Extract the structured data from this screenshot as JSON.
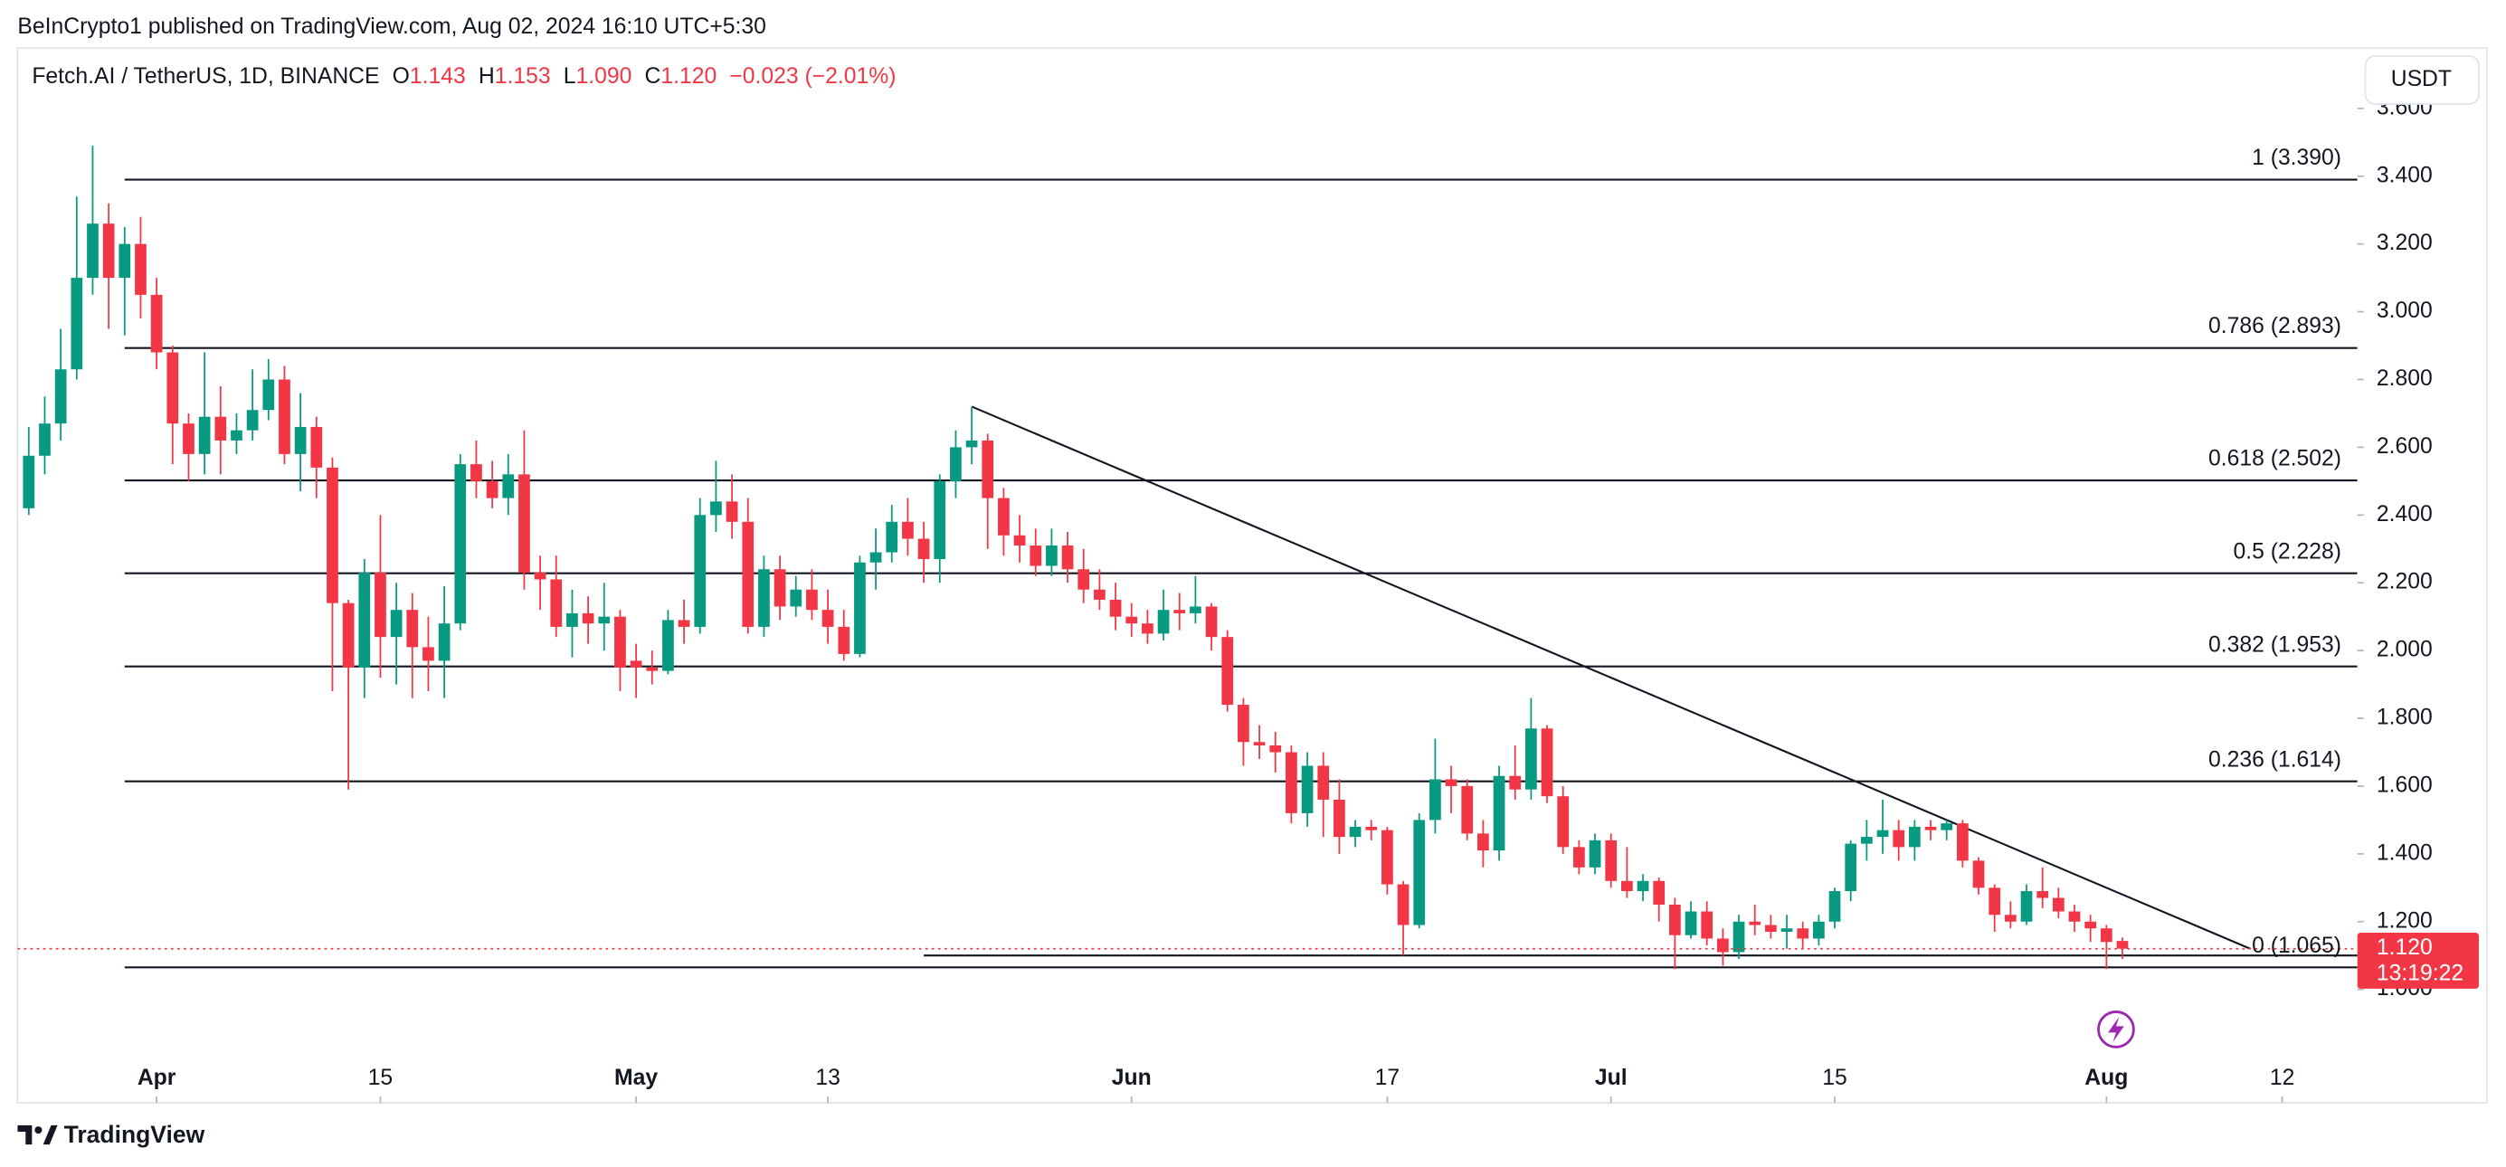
{
  "header": "BeInCrypto1 published on TradingView.com, Aug 02, 2024 16:10 UTC+5:30",
  "brand": "TradingView",
  "chart_data": {
    "type": "candlestick",
    "title": "Fetch.AI / TetherUS, 1D, BINANCE",
    "ohlc_legend": [
      {
        "key": "O",
        "value": "1.143"
      },
      {
        "key": "H",
        "value": "1.153"
      },
      {
        "key": "L",
        "value": "1.090"
      },
      {
        "key": "C",
        "value": "1.120"
      }
    ],
    "change": "−0.023 (−2.01%)",
    "currency": "USDT",
    "up_color": "#089981",
    "down_color": "#f23645",
    "x": [
      "2024-03-24",
      "2024-03-25",
      "2024-03-26",
      "2024-03-27",
      "2024-03-28",
      "2024-03-29",
      "2024-03-30",
      "2024-03-31",
      "2024-04-01",
      "2024-04-02",
      "2024-04-03",
      "2024-04-04",
      "2024-04-05",
      "2024-04-06",
      "2024-04-07",
      "2024-04-08",
      "2024-04-09",
      "2024-04-10",
      "2024-04-11",
      "2024-04-12",
      "2024-04-13",
      "2024-04-14",
      "2024-04-15",
      "2024-04-16",
      "2024-04-17",
      "2024-04-18",
      "2024-04-19",
      "2024-04-20",
      "2024-04-21",
      "2024-04-22",
      "2024-04-23",
      "2024-04-24",
      "2024-04-25",
      "2024-04-26",
      "2024-04-27",
      "2024-04-28",
      "2024-04-29",
      "2024-04-30",
      "2024-05-01",
      "2024-05-02",
      "2024-05-03",
      "2024-05-04",
      "2024-05-05",
      "2024-05-06",
      "2024-05-07",
      "2024-05-08",
      "2024-05-09",
      "2024-05-10",
      "2024-05-11",
      "2024-05-12",
      "2024-05-13",
      "2024-05-14",
      "2024-05-15",
      "2024-05-16",
      "2024-05-17",
      "2024-05-18",
      "2024-05-19",
      "2024-05-20",
      "2024-05-21",
      "2024-05-22",
      "2024-05-23",
      "2024-05-24",
      "2024-05-25",
      "2024-05-26",
      "2024-05-27",
      "2024-05-28",
      "2024-05-29",
      "2024-05-30",
      "2024-05-31",
      "2024-06-01",
      "2024-06-02",
      "2024-06-03",
      "2024-06-04",
      "2024-06-05",
      "2024-06-06",
      "2024-06-07",
      "2024-06-08",
      "2024-06-09",
      "2024-06-10",
      "2024-06-11",
      "2024-06-12",
      "2024-06-13",
      "2024-06-14",
      "2024-06-15",
      "2024-06-16",
      "2024-06-17",
      "2024-06-18",
      "2024-06-19",
      "2024-06-20",
      "2024-06-21",
      "2024-06-22",
      "2024-06-23",
      "2024-06-24",
      "2024-06-25",
      "2024-06-26",
      "2024-06-27",
      "2024-06-28",
      "2024-06-29",
      "2024-06-30",
      "2024-07-01",
      "2024-07-02",
      "2024-07-03",
      "2024-07-04",
      "2024-07-05",
      "2024-07-06",
      "2024-07-07",
      "2024-07-08",
      "2024-07-09",
      "2024-07-10",
      "2024-07-11",
      "2024-07-12",
      "2024-07-13",
      "2024-07-14",
      "2024-07-15",
      "2024-07-16",
      "2024-07-17",
      "2024-07-18",
      "2024-07-19",
      "2024-07-20",
      "2024-07-21",
      "2024-07-22",
      "2024-07-23",
      "2024-07-24",
      "2024-07-25",
      "2024-07-26",
      "2024-07-27",
      "2024-07-28",
      "2024-07-29",
      "2024-07-30",
      "2024-07-31",
      "2024-08-01",
      "2024-08-02"
    ],
    "open": [
      2.42,
      2.575,
      2.67,
      2.83,
      3.1,
      3.26,
      3.1,
      3.2,
      3.05,
      2.88,
      2.67,
      2.58,
      2.69,
      2.62,
      2.65,
      2.71,
      2.8,
      2.58,
      2.66,
      2.54,
      2.14,
      1.95,
      2.23,
      2.04,
      2.12,
      2.01,
      1.97,
      2.08,
      2.55,
      2.5,
      2.45,
      2.52,
      2.23,
      2.21,
      2.07,
      2.11,
      2.08,
      2.1,
      1.97,
      1.95,
      1.94,
      2.09,
      2.07,
      2.4,
      2.44,
      2.38,
      2.07,
      2.24,
      2.13,
      2.18,
      2.12,
      2.07,
      1.99,
      2.26,
      2.29,
      2.38,
      2.33,
      2.27,
      2.5,
      2.6,
      2.62,
      2.45,
      2.34,
      2.31,
      2.25,
      2.31,
      2.24,
      2.18,
      2.15,
      2.1,
      2.08,
      2.05,
      2.12,
      2.11,
      2.13,
      2.04,
      1.84,
      1.73,
      1.72,
      1.7,
      1.52,
      1.66,
      1.56,
      1.45,
      1.48,
      1.47,
      1.31,
      1.19,
      1.5,
      1.62,
      1.6,
      1.46,
      1.41,
      1.63,
      1.59,
      1.77,
      1.57,
      1.42,
      1.36,
      1.44,
      1.32,
      1.29,
      1.32,
      1.25,
      1.16,
      1.23,
      1.15,
      1.11,
      1.2,
      1.19,
      1.17,
      1.18,
      1.15,
      1.2,
      1.29,
      1.43,
      1.45,
      1.47,
      1.42,
      1.48,
      1.47,
      1.49,
      1.38,
      1.3,
      1.22,
      1.2,
      1.29,
      1.27,
      1.23,
      1.2,
      1.18,
      1.143
    ],
    "high": [
      2.66,
      2.75,
      2.95,
      3.34,
      3.49,
      3.32,
      3.25,
      3.28,
      3.1,
      2.9,
      2.7,
      2.88,
      2.78,
      2.7,
      2.83,
      2.86,
      2.84,
      2.76,
      2.69,
      2.57,
      2.15,
      2.27,
      2.4,
      2.2,
      2.17,
      2.1,
      2.19,
      2.58,
      2.62,
      2.56,
      2.58,
      2.65,
      2.28,
      2.28,
      2.18,
      2.16,
      2.2,
      2.12,
      2.02,
      2.0,
      2.12,
      2.15,
      2.45,
      2.56,
      2.52,
      2.45,
      2.28,
      2.28,
      2.22,
      2.24,
      2.18,
      2.12,
      2.28,
      2.36,
      2.43,
      2.45,
      2.38,
      2.52,
      2.65,
      2.72,
      2.64,
      2.48,
      2.4,
      2.36,
      2.36,
      2.35,
      2.3,
      2.24,
      2.2,
      2.14,
      2.12,
      2.18,
      2.17,
      2.22,
      2.14,
      2.06,
      1.86,
      1.78,
      1.76,
      1.72,
      1.7,
      1.7,
      1.62,
      1.5,
      1.5,
      1.48,
      1.32,
      1.52,
      1.74,
      1.66,
      1.62,
      1.5,
      1.66,
      1.72,
      1.86,
      1.78,
      1.6,
      1.44,
      1.46,
      1.46,
      1.42,
      1.34,
      1.33,
      1.27,
      1.26,
      1.26,
      1.18,
      1.22,
      1.25,
      1.22,
      1.22,
      1.2,
      1.22,
      1.3,
      1.44,
      1.5,
      1.56,
      1.5,
      1.5,
      1.5,
      1.5,
      1.5,
      1.39,
      1.31,
      1.26,
      1.31,
      1.36,
      1.3,
      1.25,
      1.22,
      1.19,
      1.153
    ],
    "low": [
      2.4,
      2.52,
      2.62,
      2.8,
      3.05,
      2.95,
      2.93,
      2.98,
      2.83,
      2.55,
      2.5,
      2.52,
      2.52,
      2.58,
      2.62,
      2.68,
      2.55,
      2.47,
      2.45,
      1.88,
      1.59,
      1.86,
      1.92,
      1.9,
      1.86,
      1.88,
      1.86,
      2.06,
      2.45,
      2.42,
      2.4,
      2.18,
      2.12,
      2.04,
      1.98,
      2.02,
      2.0,
      1.88,
      1.86,
      1.9,
      1.93,
      2.02,
      2.05,
      2.35,
      2.33,
      2.05,
      2.04,
      2.09,
      2.1,
      2.09,
      2.02,
      1.97,
      1.98,
      2.18,
      2.26,
      2.28,
      2.2,
      2.2,
      2.45,
      2.55,
      2.3,
      2.28,
      2.26,
      2.22,
      2.22,
      2.2,
      2.14,
      2.12,
      2.06,
      2.04,
      2.02,
      2.03,
      2.06,
      2.08,
      2.0,
      1.82,
      1.66,
      1.68,
      1.64,
      1.49,
      1.48,
      1.45,
      1.4,
      1.42,
      1.44,
      1.28,
      1.1,
      1.18,
      1.46,
      1.52,
      1.44,
      1.36,
      1.38,
      1.56,
      1.56,
      1.55,
      1.4,
      1.34,
      1.34,
      1.3,
      1.27,
      1.26,
      1.2,
      1.06,
      1.15,
      1.13,
      1.07,
      1.09,
      1.16,
      1.15,
      1.12,
      1.12,
      1.13,
      1.18,
      1.26,
      1.38,
      1.4,
      1.38,
      1.38,
      1.44,
      1.44,
      1.36,
      1.28,
      1.17,
      1.18,
      1.19,
      1.24,
      1.21,
      1.17,
      1.14,
      1.06,
      1.09
    ],
    "close": [
      2.575,
      2.67,
      2.83,
      3.1,
      3.26,
      3.1,
      3.2,
      3.05,
      2.88,
      2.67,
      2.58,
      2.69,
      2.62,
      2.65,
      2.71,
      2.8,
      2.58,
      2.66,
      2.54,
      2.14,
      1.95,
      2.23,
      2.04,
      2.12,
      2.01,
      1.97,
      2.08,
      2.55,
      2.5,
      2.45,
      2.52,
      2.23,
      2.21,
      2.07,
      2.11,
      2.08,
      2.1,
      1.95,
      1.95,
      1.94,
      2.09,
      2.07,
      2.4,
      2.44,
      2.38,
      2.07,
      2.24,
      2.13,
      2.18,
      2.12,
      2.07,
      1.99,
      2.26,
      2.29,
      2.38,
      2.33,
      2.27,
      2.5,
      2.6,
      2.62,
      2.45,
      2.34,
      2.31,
      2.25,
      2.31,
      2.24,
      2.18,
      2.15,
      2.1,
      2.08,
      2.05,
      2.12,
      2.11,
      2.13,
      2.04,
      1.84,
      1.73,
      1.72,
      1.7,
      1.52,
      1.66,
      1.56,
      1.45,
      1.48,
      1.47,
      1.31,
      1.19,
      1.5,
      1.62,
      1.6,
      1.46,
      1.41,
      1.63,
      1.59,
      1.77,
      1.57,
      1.42,
      1.36,
      1.44,
      1.32,
      1.29,
      1.32,
      1.25,
      1.16,
      1.23,
      1.15,
      1.11,
      1.2,
      1.19,
      1.17,
      1.18,
      1.15,
      1.2,
      1.29,
      1.43,
      1.45,
      1.47,
      1.42,
      1.48,
      1.47,
      1.49,
      1.38,
      1.3,
      1.22,
      1.2,
      1.29,
      1.27,
      1.23,
      1.2,
      1.18,
      1.14,
      1.12
    ],
    "xlim": [
      "2024-03-23",
      "2024-08-17"
    ],
    "xticks": [
      {
        "value": "2024-04-01",
        "label": "Apr"
      },
      {
        "value": "2024-04-15",
        "label": "15"
      },
      {
        "value": "2024-05-01",
        "label": "May"
      },
      {
        "value": "2024-05-13",
        "label": "13"
      },
      {
        "value": "2024-06-01",
        "label": "Jun"
      },
      {
        "value": "2024-06-17",
        "label": "17"
      },
      {
        "value": "2024-07-01",
        "label": "Jul"
      },
      {
        "value": "2024-07-15",
        "label": "15"
      },
      {
        "value": "2024-08-01",
        "label": "Aug"
      },
      {
        "value": "2024-08-12",
        "label": "12"
      }
    ],
    "ylim": [
      0.665,
      3.778
    ],
    "yticks": [
      {
        "value": 1.0,
        "label": "1.000"
      },
      {
        "value": 1.2,
        "label": "1.200"
      },
      {
        "value": 1.4,
        "label": "1.400"
      },
      {
        "value": 1.6,
        "label": "1.600"
      },
      {
        "value": 1.8,
        "label": "1.800"
      },
      {
        "value": 2.0,
        "label": "2.000"
      },
      {
        "value": 2.2,
        "label": "2.200"
      },
      {
        "value": 2.4,
        "label": "2.400"
      },
      {
        "value": 2.6,
        "label": "2.600"
      },
      {
        "value": 2.8,
        "label": "2.800"
      },
      {
        "value": 3.0,
        "label": "3.000"
      },
      {
        "value": 3.2,
        "label": "3.200"
      },
      {
        "value": 3.4,
        "label": "3.400"
      },
      {
        "value": 3.6,
        "label": "3.600"
      }
    ],
    "grid": false,
    "fib_levels": [
      {
        "label": "1 (3.390)",
        "value": 3.39
      },
      {
        "label": "0.786 (2.893)",
        "value": 2.893
      },
      {
        "label": "0.618 (2.502)",
        "value": 2.502
      },
      {
        "label": "0.5 (2.228)",
        "value": 2.228
      },
      {
        "label": "0.382 (1.953)",
        "value": 1.953
      },
      {
        "label": "0.236 (1.614)",
        "value": 1.614
      },
      {
        "label": "0 (1.065)",
        "value": 1.065
      }
    ],
    "fib_start": "2024-03-30",
    "trendline": {
      "x": [
        "2024-05-22",
        "2024-08-10"
      ],
      "y": [
        2.72,
        1.12
      ]
    },
    "support_line": {
      "x": [
        "2024-05-19",
        "2024-08-17"
      ],
      "y": [
        1.1,
        1.1
      ]
    },
    "last_price": {
      "value": 1.12,
      "label": "1.120",
      "countdown": "13:19:22"
    }
  }
}
